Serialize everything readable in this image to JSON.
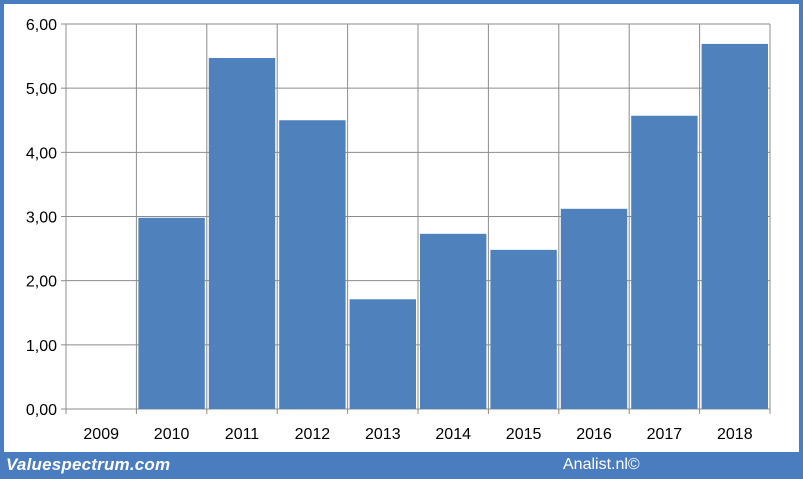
{
  "chart_data": {
    "type": "bar",
    "categories": [
      "2009",
      "2010",
      "2011",
      "2012",
      "2013",
      "2014",
      "2015",
      "2016",
      "2017",
      "2018"
    ],
    "values": [
      0,
      2.98,
      5.47,
      4.5,
      1.71,
      2.73,
      2.48,
      3.12,
      4.57,
      5.69
    ],
    "ylim": [
      0,
      6
    ],
    "yticks": [
      "0,00",
      "1,00",
      "2,00",
      "3,00",
      "4,00",
      "5,00",
      "6,00"
    ],
    "grid": true,
    "bar_color": "#4f81bd"
  },
  "footer": {
    "left": "Valuespectrum.com",
    "right": "Analist.nl©"
  }
}
